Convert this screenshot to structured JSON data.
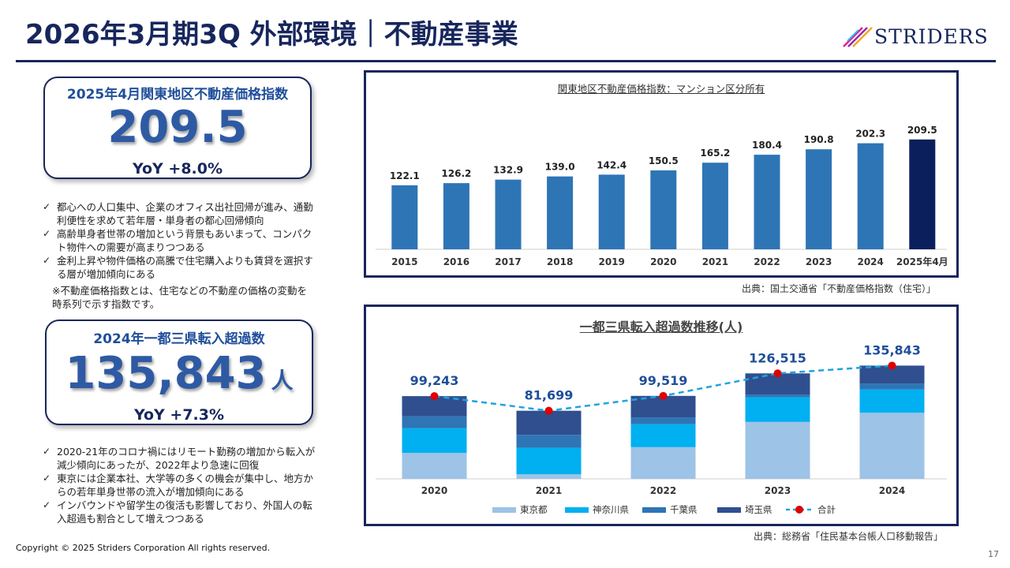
{
  "header": {
    "title": "2026年3月期3Q 外部環境｜不動産事業",
    "logo_text": "STRIDERS"
  },
  "kpi1": {
    "label": "2025年4月関東地区不動産価格指数",
    "value": "209.5",
    "yoy": "YoY  +8.0%"
  },
  "bullets1": [
    "都心への人口集中、企業のオフィス出社回帰が進み、通勤利便性を求めて若年層・単身者の都心回帰傾向",
    "高齢単身者世帯の増加という背景もあいまって、コンパクト物件への需要が高まりつつある",
    "金利上昇や物件価格の高騰で住宅購入よりも賃貸を選択する層が増加傾向にある"
  ],
  "note1": "※不動産価格指数とは、住宅などの不動産の価格の変動を時系列で示す指数です。",
  "kpi2": {
    "label": "2024年一都三県転入超過数",
    "value": "135,843",
    "unit": "人",
    "yoy": "YoY  +7.3%"
  },
  "bullets2": [
    "2020-21年のコロナ禍にはリモート勤務の増加から転入が減少傾向にあったが、2022年より急速に回復",
    "東京には企業本社、大学等の多くの機会が集中し、地方からの若年単身世帯の流入が増加傾向にある",
    "インバウンドや留学生の復活も影響しており、外国人の転入超過も割合として増えつつある"
  ],
  "chart1": {
    "source": "出典：国土交通省「不動産価格指数（住宅）」"
  },
  "chart2": {
    "source": "出典：総務省「住民基本台帳人口移動報告」"
  },
  "chart_data": [
    {
      "type": "bar",
      "title": "関東地区不動産価格指数：マンション区分所有",
      "categories": [
        "2015",
        "2016",
        "2017",
        "2018",
        "2019",
        "2020",
        "2021",
        "2022",
        "2023",
        "2024",
        "2025年4月"
      ],
      "values": [
        122.1,
        126.2,
        132.9,
        139.0,
        142.4,
        150.5,
        165.2,
        180.4,
        190.8,
        202.3,
        209.5
      ],
      "value_labels": [
        "122.1",
        "126.2",
        "132.9",
        "139.0",
        "142.4",
        "150.5",
        "165.2",
        "180.4",
        "190.8",
        "202.3",
        "209.5"
      ],
      "colors": {
        "bar": "#2e75b6",
        "highlight": "#0b1f5c"
      },
      "ylim": [
        0,
        230
      ]
    },
    {
      "type": "bar",
      "stacked": true,
      "title": "一都三県転入超過数推移(人)",
      "categories": [
        "2020",
        "2021",
        "2022",
        "2023",
        "2024"
      ],
      "series": [
        {
          "name": "東京都",
          "color": "#9dc3e6",
          "values": [
            31125,
            5433,
            38023,
            68285,
            79285
          ]
        },
        {
          "name": "神奈川県",
          "color": "#00b0f0",
          "values": [
            29574,
            31844,
            27564,
            29707,
            27858
          ]
        },
        {
          "name": "千葉県",
          "color": "#2e75b6",
          "values": [
            14273,
            15454,
            8164,
            2950,
            7295
          ]
        },
        {
          "name": "埼玉県",
          "color": "#2f4f8f",
          "values": [
            24271,
            28968,
            25768,
            25573,
            21405
          ]
        }
      ],
      "total": {
        "name": "合計",
        "color": "#e00000",
        "values": [
          99243,
          81699,
          99519,
          126515,
          135843
        ],
        "labels": [
          "99,243",
          "81,699",
          "99,519",
          "126,515",
          "135,843"
        ]
      },
      "ylim": [
        0,
        140000
      ]
    }
  ],
  "footer": {
    "copyright": "Copyright © 2025 Striders Corporation All rights reserved.",
    "page": "17"
  }
}
